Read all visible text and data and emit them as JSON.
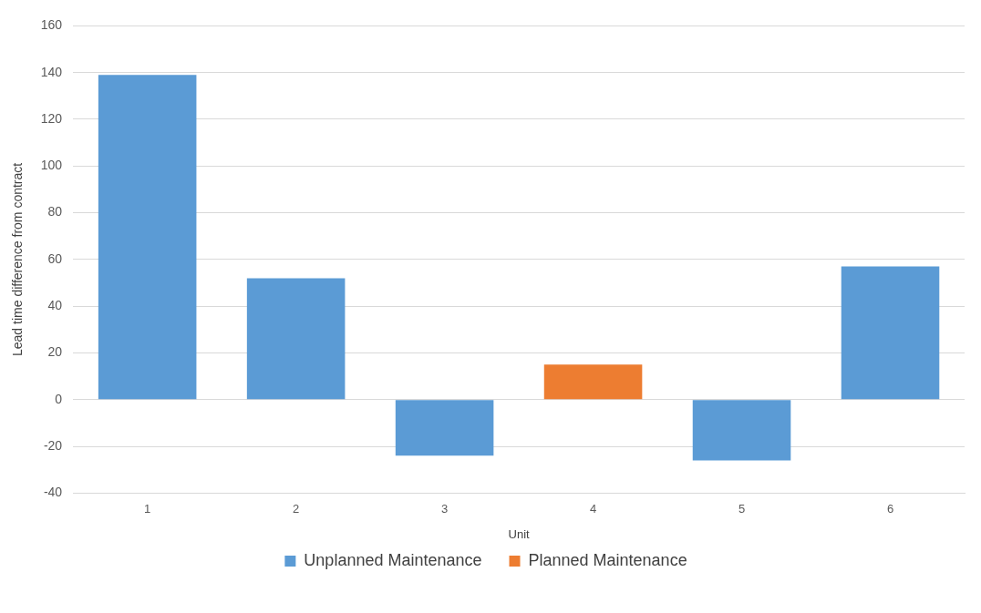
{
  "chart_data": {
    "type": "bar",
    "xlabel": "Unit",
    "ylabel": "Lead time difference from contract",
    "categories": [
      "1",
      "2",
      "3",
      "4",
      "5",
      "6"
    ],
    "series": [
      {
        "name": "Unplanned Maintenance",
        "color": "#5b9bd5",
        "values": [
          139,
          52,
          -24,
          null,
          -26,
          57
        ]
      },
      {
        "name": "Planned Maintenance",
        "color": "#ed7d31",
        "values": [
          null,
          null,
          null,
          15,
          null,
          null
        ]
      }
    ],
    "ylim": [
      -40,
      160
    ],
    "yticks": [
      -40,
      -20,
      0,
      20,
      40,
      60,
      80,
      100,
      120,
      140,
      160
    ],
    "grid": "y",
    "legend": "bottom"
  }
}
